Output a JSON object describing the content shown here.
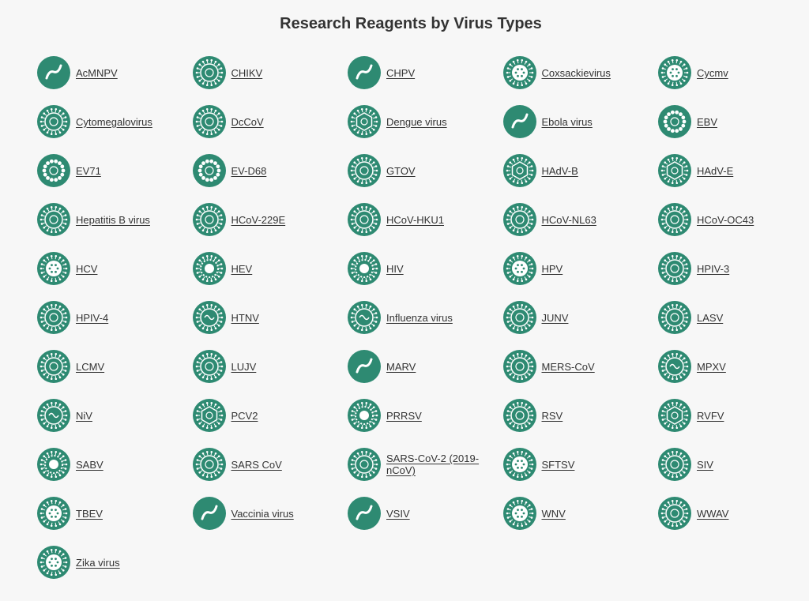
{
  "page": {
    "title": "Research Reagents by Virus Types"
  },
  "theme": {
    "icon_color": "#2e8a72",
    "text_color": "#333333",
    "background": "#f7f7f7"
  },
  "viruses": [
    {
      "label": "AcMNPV",
      "icon": "acmnpv-icon"
    },
    {
      "label": "CHIKV",
      "icon": "chikv-icon"
    },
    {
      "label": "CHPV",
      "icon": "chpv-icon"
    },
    {
      "label": "Coxsackievirus",
      "icon": "coxsackievirus-icon"
    },
    {
      "label": "Cycmv",
      "icon": "cycmv-icon"
    },
    {
      "label": "Cytomegalovirus",
      "icon": "cytomegalovirus-icon"
    },
    {
      "label": "DcCoV",
      "icon": "dccov-icon"
    },
    {
      "label": "Dengue virus",
      "icon": "dengue-virus-icon"
    },
    {
      "label": "Ebola virus",
      "icon": "ebola-virus-icon"
    },
    {
      "label": "EBV",
      "icon": "ebv-icon"
    },
    {
      "label": "EV71",
      "icon": "ev71-icon"
    },
    {
      "label": "EV-D68",
      "icon": "ev-d68-icon"
    },
    {
      "label": "GTOV",
      "icon": "gtov-icon"
    },
    {
      "label": "HAdV-B",
      "icon": "hadv-b-icon"
    },
    {
      "label": "HAdV-E",
      "icon": "hadv-e-icon"
    },
    {
      "label": "Hepatitis B virus",
      "icon": "hepatitis-b-virus-icon"
    },
    {
      "label": "HCoV-229E",
      "icon": "hcov-229e-icon"
    },
    {
      "label": "HCoV-HKU1",
      "icon": "hcov-hku1-icon"
    },
    {
      "label": "HCoV-NL63",
      "icon": "hcov-nl63-icon"
    },
    {
      "label": "HCoV-OC43",
      "icon": "hcov-oc43-icon"
    },
    {
      "label": "HCV",
      "icon": "hcv-icon"
    },
    {
      "label": "HEV",
      "icon": "hev-icon"
    },
    {
      "label": "HIV",
      "icon": "hiv-icon"
    },
    {
      "label": "HPV",
      "icon": "hpv-icon"
    },
    {
      "label": "HPIV-3",
      "icon": "hpiv-3-icon"
    },
    {
      "label": "HPIV-4",
      "icon": "hpiv-4-icon"
    },
    {
      "label": "HTNV",
      "icon": "htnv-icon"
    },
    {
      "label": "Influenza virus",
      "icon": "influenza-virus-icon"
    },
    {
      "label": "JUNV",
      "icon": "junv-icon"
    },
    {
      "label": "LASV",
      "icon": "lasv-icon"
    },
    {
      "label": "LCMV",
      "icon": "lcmv-icon"
    },
    {
      "label": "LUJV",
      "icon": "lujv-icon"
    },
    {
      "label": "MARV",
      "icon": "marv-icon"
    },
    {
      "label": "MERS-CoV",
      "icon": "mers-cov-icon"
    },
    {
      "label": "MPXV",
      "icon": "mpxv-icon"
    },
    {
      "label": "NiV",
      "icon": "niv-icon"
    },
    {
      "label": "PCV2",
      "icon": "pcv2-icon"
    },
    {
      "label": "PRRSV",
      "icon": "prrsv-icon"
    },
    {
      "label": "RSV",
      "icon": "rsv-icon"
    },
    {
      "label": "RVFV",
      "icon": "rvfv-icon"
    },
    {
      "label": "SABV",
      "icon": "sabv-icon"
    },
    {
      "label": "SARS CoV",
      "icon": "sars-cov-icon"
    },
    {
      "label": "SARS-CoV-2 (2019-nCoV)",
      "icon": "sars-cov-2-icon"
    },
    {
      "label": "SFTSV",
      "icon": "sftsv-icon"
    },
    {
      "label": "SIV",
      "icon": "siv-icon"
    },
    {
      "label": "TBEV",
      "icon": "tbev-icon"
    },
    {
      "label": "Vaccinia virus",
      "icon": "vaccinia-virus-icon"
    },
    {
      "label": "VSIV",
      "icon": "vsiv-icon"
    },
    {
      "label": "WNV",
      "icon": "wnv-icon"
    },
    {
      "label": "WWAV",
      "icon": "wwav-icon"
    },
    {
      "label": "Zika virus",
      "icon": "zika-virus-icon"
    }
  ]
}
